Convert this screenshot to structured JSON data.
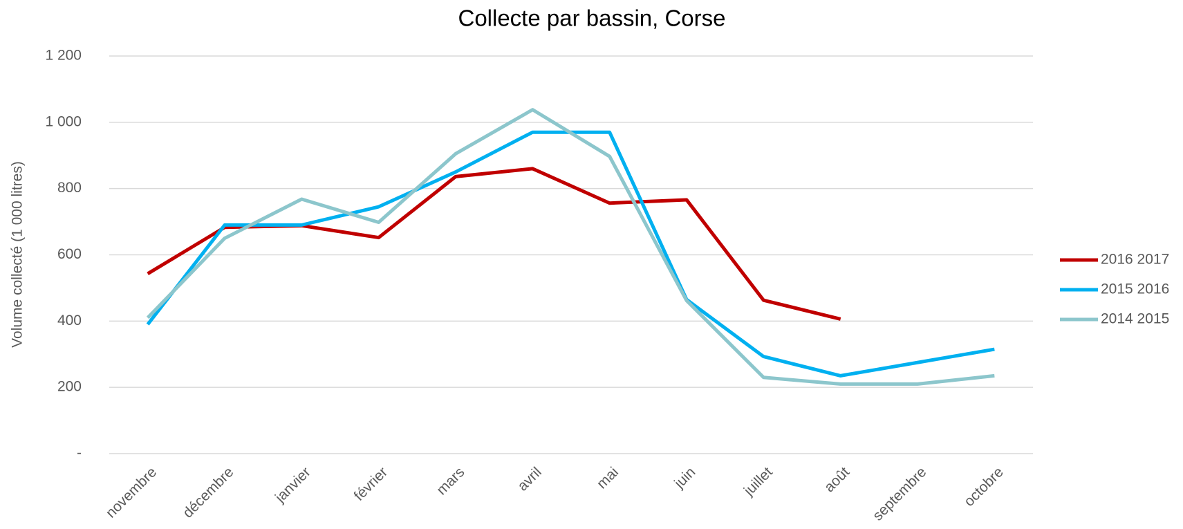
{
  "chart_data": {
    "type": "line",
    "title": "Collecte par bassin, Corse",
    "y_label": "Volume collecté (1 000 litres)",
    "categories": [
      "novembre",
      "décembre",
      "janvier",
      "février",
      "mars",
      "avril",
      "mai",
      "juin",
      "juillet",
      "août",
      "septembre",
      "octobre"
    ],
    "series": [
      {
        "name": "2016 2017",
        "color": "#c00000",
        "values": [
          543,
          683,
          688,
          652,
          836,
          860,
          756,
          766,
          463,
          406,
          null,
          null
        ]
      },
      {
        "name": "2015 2016",
        "color": "#00b0f0",
        "values": [
          390,
          690,
          690,
          745,
          850,
          970,
          970,
          465,
          293,
          235,
          275,
          315
        ]
      },
      {
        "name": "2014 2015",
        "color": "#8cc6cc",
        "values": [
          410,
          650,
          768,
          698,
          905,
          1038,
          897,
          462,
          230,
          210,
          210,
          235
        ]
      }
    ],
    "ylim": [
      0,
      1200
    ],
    "yticks": [
      {
        "value": 0,
        "label": "-"
      },
      200,
      400,
      600,
      800,
      {
        "value": 1000,
        "label": "1 000"
      },
      {
        "value": 1200,
        "label": "1 200"
      }
    ],
    "grid": true,
    "legend": "right"
  }
}
